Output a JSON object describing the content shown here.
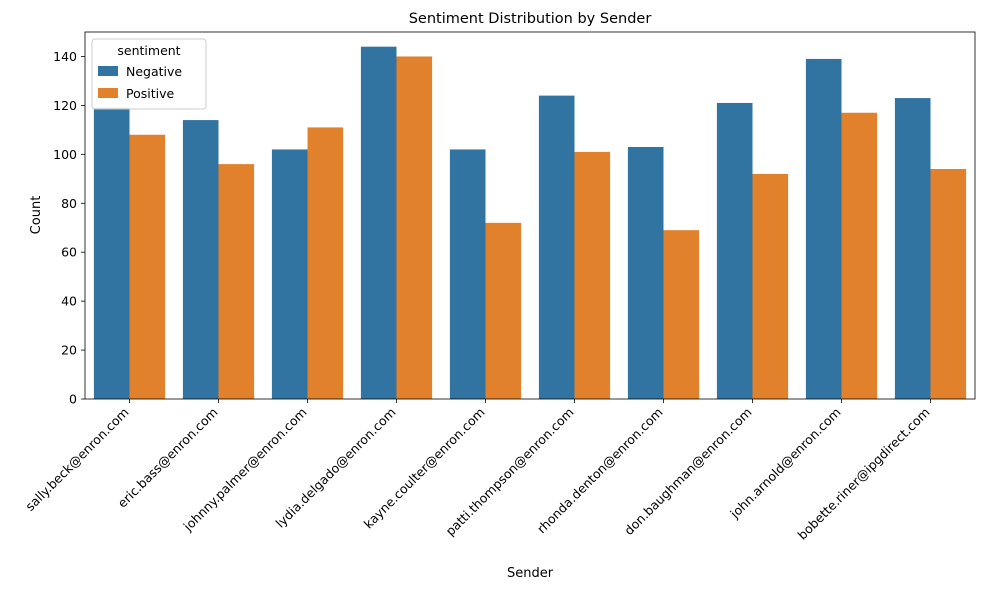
{
  "chart_data": {
    "type": "bar",
    "title": "Sentiment Distribution by Sender",
    "xlabel": "Sender",
    "ylabel": "Count",
    "ylim": [
      0,
      150
    ],
    "yticks": [
      0,
      20,
      40,
      60,
      80,
      100,
      120,
      140
    ],
    "grid": false,
    "legend": {
      "title": "sentiment",
      "placement": "top-left"
    },
    "categories": [
      "sally.beck@enron.com",
      "eric.bass@enron.com",
      "johnny.palmer@enron.com",
      "lydia.delgado@enron.com",
      "kayne.coulter@enron.com",
      "patti.thompson@enron.com",
      "rhonda.denton@enron.com",
      "don.baughman@enron.com",
      "john.arnold@enron.com",
      "bobette.riner@ipgdirect.com"
    ],
    "series": [
      {
        "name": "Negative",
        "color": "#3274a1",
        "values": [
          119,
          114,
          102,
          144,
          102,
          124,
          103,
          121,
          139,
          123
        ]
      },
      {
        "name": "Positive",
        "color": "#e1812c",
        "values": [
          108,
          96,
          111,
          140,
          72,
          101,
          69,
          92,
          117,
          94
        ]
      }
    ]
  }
}
